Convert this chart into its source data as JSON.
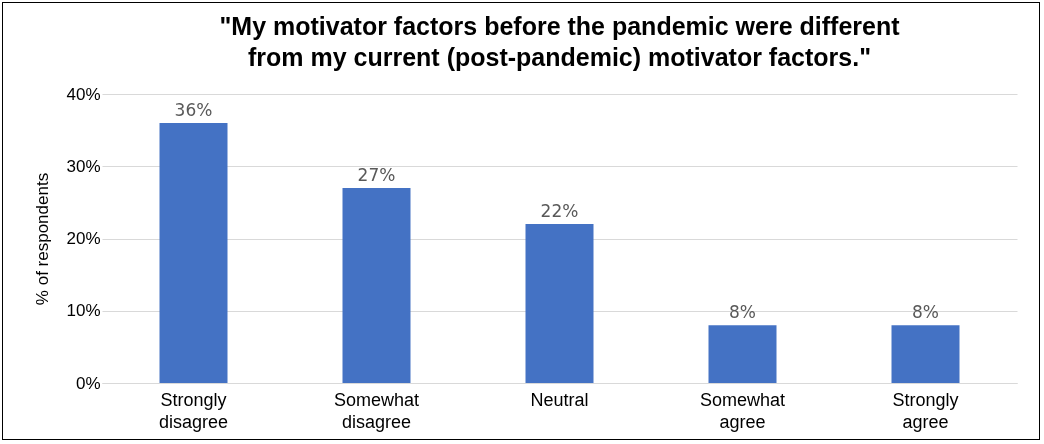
{
  "chart_data": {
    "type": "bar",
    "title": "\"My motivator factors before the pandemic were different from my current (post-pandemic) motivator factors.\"",
    "ylabel": "% of respondents",
    "categories": [
      "Strongly disagree",
      "Somewhat disagree",
      "Neutral",
      "Somewhat agree",
      "Strongly agree"
    ],
    "values": [
      36,
      27,
      22,
      8,
      8
    ],
    "color": "#4472c4",
    "ylim": [
      0,
      40
    ],
    "yticks": [
      {
        "value": 0,
        "label": "0%"
      },
      {
        "value": 10,
        "label": "10%"
      },
      {
        "value": 20,
        "label": "20%"
      },
      {
        "value": 30,
        "label": "30%"
      },
      {
        "value": 40,
        "label": "40%"
      }
    ],
    "value_labels": [
      "36%",
      "27%",
      "22%",
      "8%",
      "8%"
    ],
    "grid": "y"
  }
}
